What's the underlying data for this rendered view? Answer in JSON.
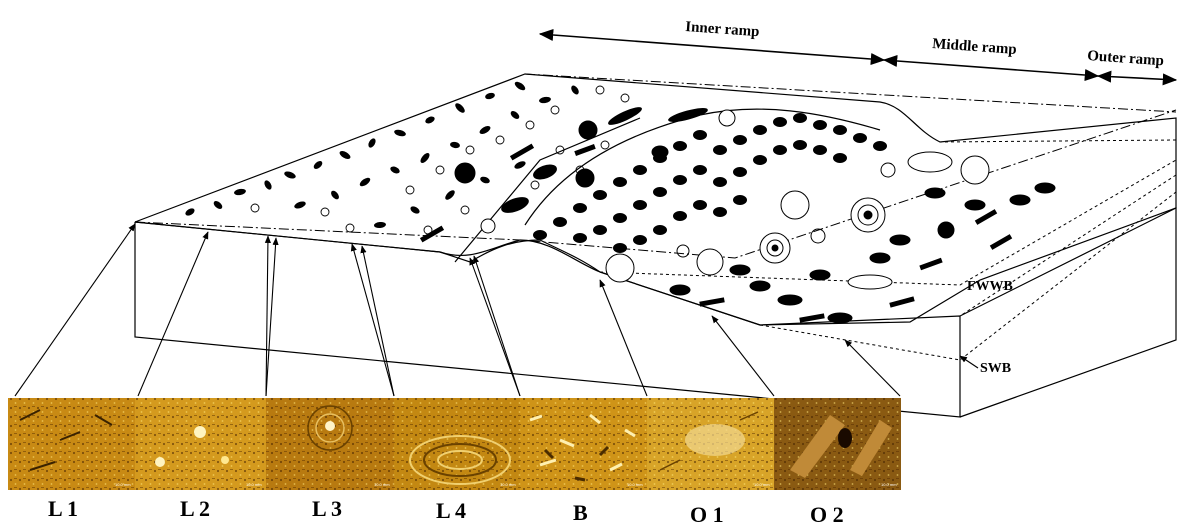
{
  "zones": {
    "inner_ramp": "Inner ramp",
    "middle_ramp": "Middle ramp",
    "outer_ramp": "Outer ramp"
  },
  "boundaries": {
    "fwwb": "FWWB",
    "swb": "SWB"
  },
  "microfacies": [
    {
      "label": "L 1",
      "tone": "#c88a14",
      "scale": "10.0 mm"
    },
    {
      "label": "L 2",
      "tone": "#d49a1e",
      "scale": "10.0 mm"
    },
    {
      "label": "L 3",
      "tone": "#b87a10",
      "scale": "10.0 mm"
    },
    {
      "label": "L 4",
      "tone": "#c38812",
      "scale": "10.0 mm"
    },
    {
      "label": "B",
      "tone": "#cf9418",
      "scale": "10.0 mm"
    },
    {
      "label": "O 1",
      "tone": "#d8a428",
      "scale": "10.0 mm"
    },
    {
      "label": "O 2",
      "tone": "#8a5a12",
      "scale": "10.0 mm"
    }
  ]
}
